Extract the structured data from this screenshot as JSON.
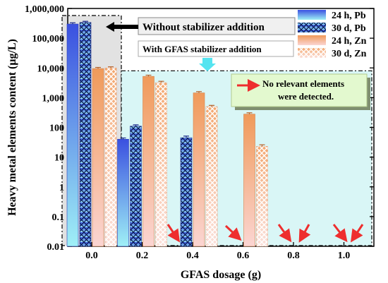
{
  "chart_data": {
    "type": "bar",
    "xlabel": "GFAS dosage (g)",
    "ylabel": "Heavy metal elements content (μg/L)",
    "yscale": "log",
    "ylim": [
      0.01,
      1000000
    ],
    "y_ticks": [
      "0.01",
      "0.1",
      "1",
      "10",
      "100",
      "1,000",
      "10,000",
      "100,000",
      "1,000,000"
    ],
    "categories": [
      "0.0",
      "0.2",
      "0.4",
      "0.6",
      "0.8",
      "1.0"
    ],
    "series": [
      {
        "name": "24 h, Pb",
        "values": [
          300000,
          40,
          null,
          null,
          null,
          null
        ],
        "errors": [
          30000,
          4,
          null,
          null,
          null,
          null
        ],
        "color": "#4f6fe8"
      },
      {
        "name": "30 d, Pb",
        "values": [
          340000,
          110,
          45,
          null,
          null,
          null
        ],
        "errors": [
          30000,
          12,
          6,
          null,
          null,
          null
        ],
        "color": "#3b56d6"
      },
      {
        "name": "24 h, Zn",
        "values": [
          9500,
          5200,
          1450,
          280,
          null,
          null
        ],
        "errors": [
          900,
          500,
          150,
          30,
          null,
          null
        ],
        "color": "#f0a070"
      },
      {
        "name": "30 d, Zn",
        "values": [
          10000,
          3200,
          500,
          23,
          null,
          null
        ],
        "errors": [
          900,
          350,
          50,
          3,
          null,
          null
        ],
        "color": "#f4b08c"
      }
    ],
    "legend_position": "top-right",
    "annotations": {
      "without_stabilizer": "Without stabilizer addition",
      "with_stabilizer": "With GFAS stabilizer addition",
      "no_elements_line1": "No relevant elements",
      "no_elements_line2": "were detected."
    },
    "colors": {
      "pb_top": "#3a50e0",
      "pb_bottom": "#9ff0f6",
      "zn_top": "#f09a5a",
      "zn_bottom": "#fbd5d2",
      "region_without": "#e2e2e2",
      "region_with": "#d9f6f6",
      "callout_fill": "#e3f9cf",
      "callout_border": "#b3cb8c",
      "arrow_red": "#ee2e2e",
      "arrow_cyan": "#55e4f0"
    }
  }
}
